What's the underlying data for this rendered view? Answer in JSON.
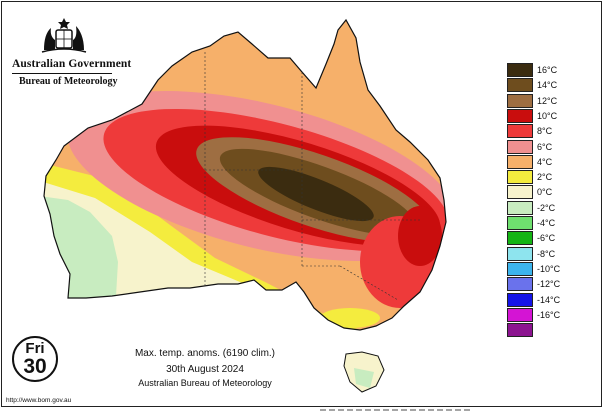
{
  "header": {
    "government": "Australian Government",
    "agency": "Bureau of Meteorology"
  },
  "map": {
    "title": "Max. temp. anoms. (6190 clim.)",
    "date": "30th August 2024",
    "source": "Australian Bureau of Meteorology",
    "variable": "maximum temperature anomaly",
    "units": "°C"
  },
  "day_badge": {
    "day": "Fri",
    "number": "30"
  },
  "footer": {
    "url": "http://www.bom.gov.au"
  },
  "legend": [
    {
      "label": "16°C",
      "color": "#3b2c10"
    },
    {
      "label": "14°C",
      "color": "#6e4d1e"
    },
    {
      "label": "12°C",
      "color": "#9e6e42"
    },
    {
      "label": "10°C",
      "color": "#c90d0d"
    },
    {
      "label": "8°C",
      "color": "#ee3a3a"
    },
    {
      "label": "6°C",
      "color": "#f09090"
    },
    {
      "label": "4°C",
      "color": "#f6b06a"
    },
    {
      "label": "2°C",
      "color": "#f4ec3e"
    },
    {
      "label": "0°C",
      "color": "#f7f3cc"
    },
    {
      "label": "-2°C",
      "color": "#c8ecc0"
    },
    {
      "label": "-4°C",
      "color": "#6fe06f"
    },
    {
      "label": "-6°C",
      "color": "#14b414"
    },
    {
      "label": "-8°C",
      "color": "#8ee4ee"
    },
    {
      "label": "-10°C",
      "color": "#3cb4ec"
    },
    {
      "label": "-12°C",
      "color": "#6a72ec"
    },
    {
      "label": "-14°C",
      "color": "#1414e8"
    },
    {
      "label": "-16°C",
      "color": "#d414d4"
    },
    {
      "label": "",
      "color": "#8c1490"
    }
  ]
}
